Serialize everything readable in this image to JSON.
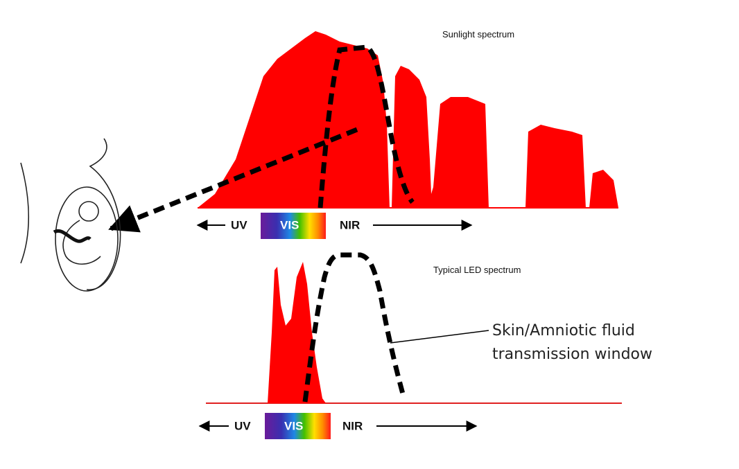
{
  "panels": [
    {
      "title": "Sunlight spectrum",
      "uv": "UV",
      "vis": "VIS",
      "nir": "NIR"
    },
    {
      "title": "Typical LED spectrum",
      "uv": "UV",
      "vis": "VIS",
      "nir": "NIR"
    }
  ],
  "annotation": [
    "Skin/Amniotic fluid",
    "transmission window"
  ]
}
